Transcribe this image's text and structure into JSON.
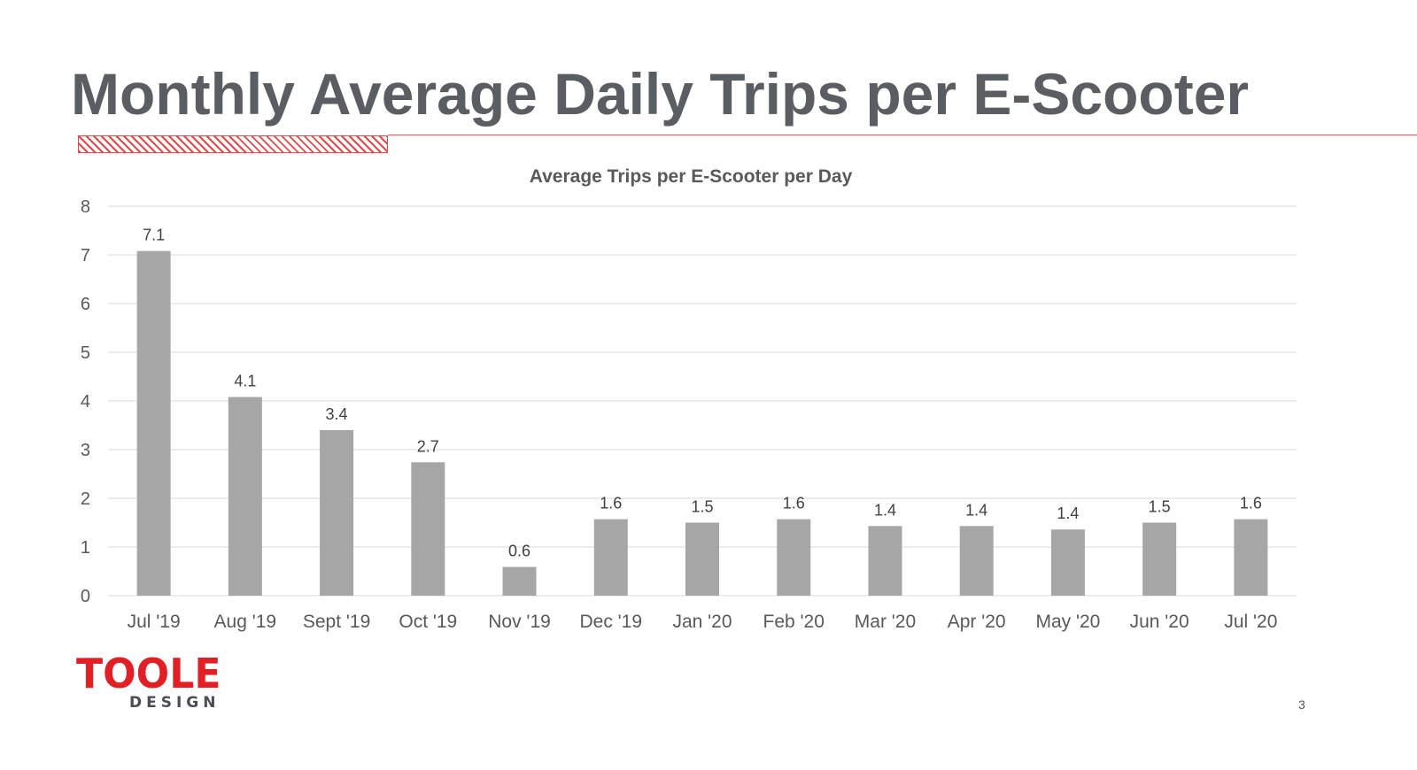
{
  "slide": {
    "title": "Monthly Average Daily Trips per E-Scooter",
    "page_number": "3"
  },
  "logo": {
    "name": "TOOLE",
    "sub": "DESIGN"
  },
  "colors": {
    "title": "#5a5d61",
    "accent": "#e31f26",
    "bar": "#a6a6a6",
    "gridline": "#d9d9d9"
  },
  "chart_data": {
    "type": "bar",
    "title": "Average Trips per E-Scooter per Day",
    "xlabel": "",
    "ylabel": "",
    "categories": [
      "Jul '19",
      "Aug '19",
      "Sept '19",
      "Oct '19",
      "Nov '19",
      "Dec '19",
      "Jan '20",
      "Feb '20",
      "Mar '20",
      "Apr '20",
      "May '20",
      "Jun '20",
      "Jul '20"
    ],
    "values": [
      7.08,
      4.08,
      3.4,
      2.74,
      0.59,
      1.57,
      1.5,
      1.57,
      1.43,
      1.43,
      1.36,
      1.5,
      1.57
    ],
    "data_labels": [
      "7.1",
      "4.1",
      "3.4",
      "2.7",
      "0.6",
      "1.6",
      "1.5",
      "1.6",
      "1.4",
      "1.4",
      "1.4",
      "1.5",
      "1.6"
    ],
    "ylim": [
      0,
      8
    ],
    "yticks": [
      "0",
      "1",
      "2",
      "3",
      "4",
      "5",
      "6",
      "7",
      "8"
    ],
    "grid": true,
    "legend": "none"
  }
}
